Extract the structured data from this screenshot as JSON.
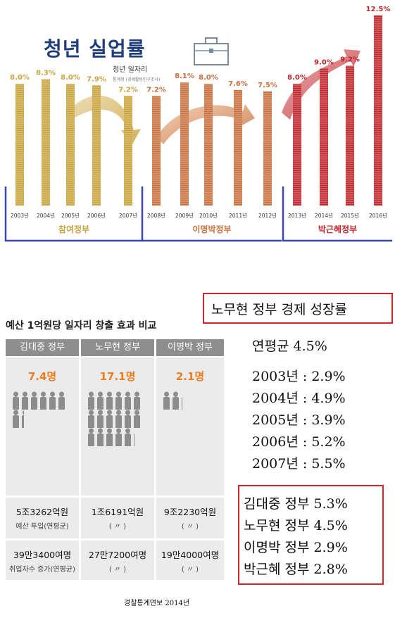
{
  "chart_data": {
    "type": "bar",
    "title": "청년 실업률",
    "subtitle": "청년 일자리",
    "source_note": "통계청 (경제활동인구조사)",
    "categories": [
      "2003년",
      "2004년",
      "2005년",
      "2006년",
      "2007년",
      "2008년",
      "2009년",
      "2010년",
      "2011년",
      "2012년",
      "2013년",
      "2014년",
      "2015년",
      "2016년"
    ],
    "values": [
      8.0,
      8.3,
      8.0,
      7.9,
      7.2,
      7.2,
      8.1,
      8.0,
      7.6,
      7.5,
      8.0,
      9.0,
      9.2,
      12.5
    ],
    "value_labels": [
      "8.0%",
      "8.3%",
      "8.0%",
      "7.9%",
      "7.2%",
      "7.2%",
      "8.1%",
      "8.0%",
      "7.6%",
      "7.5%",
      "8.0%",
      "9.0%",
      "9.2%",
      "12.5%"
    ],
    "groups": [
      {
        "name": "참여정부",
        "start": 0,
        "end": 4,
        "color": "#c9a43f"
      },
      {
        "name": "이명박정부",
        "start": 5,
        "end": 9,
        "color": "#c8713f"
      },
      {
        "name": "박근혜정부",
        "start": 10,
        "end": 13,
        "color": "#c0272d"
      }
    ],
    "ylim": [
      0,
      12.5
    ]
  },
  "comparison": {
    "title": "예산 1억원당 일자리 창출 효과 비교",
    "columns": [
      {
        "header": "김대중 정부",
        "count_label": "7.4명",
        "people": 7.4,
        "budget": "5조3262억원",
        "budget_sub": "예산 투입(연평균)",
        "jobs": "39만3400여명",
        "jobs_sub": "취업자수 증가(연평균)"
      },
      {
        "header": "노무현 정부",
        "count_label": "17.1명",
        "people": 17.1,
        "budget": "1조6191억원",
        "budget_sub": "( 〃 )",
        "jobs": "27만7200여명",
        "jobs_sub": "( 〃 )"
      },
      {
        "header": "이명박 정부",
        "count_label": "2.1명",
        "people": 2.1,
        "budget": "9조2230억원",
        "budget_sub": "( 〃 )",
        "jobs": "19만4000여명",
        "jobs_sub": "( 〃 )"
      }
    ]
  },
  "growth": {
    "title": "노무현 정부 경제 성장률",
    "average": "연평균 4.5%",
    "years": [
      "2003년 : 2.9%",
      "2004년 : 4.9%",
      "2005년 : 3.9%",
      "2006년 : 5.2%",
      "2007년 : 5.5%"
    ]
  },
  "gov_growth": [
    "김대중 정부 5.3%",
    "노무현 정부 4.5%",
    "이명박 정부 2.9%",
    "박근혜 정부 2.8%"
  ],
  "caption": "경찰통계연보 2014년",
  "colors": {
    "header_bg": "#8e8e8e",
    "accent_orange": "#f07c1b",
    "box_red": "#d8232a",
    "bracket_blue": "#3a45b0"
  }
}
